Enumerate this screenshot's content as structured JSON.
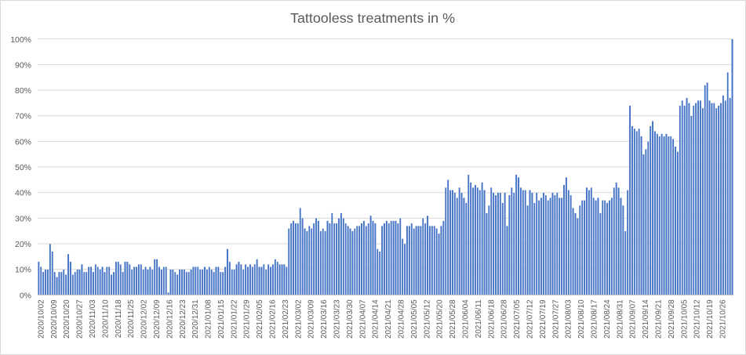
{
  "chart_data": {
    "type": "bar",
    "title": "Tattooless treatments  in %",
    "xlabel": "",
    "ylabel": "",
    "ylim": [
      0,
      100
    ],
    "yticks": [
      "0%",
      "10%",
      "20%",
      "30%",
      "40%",
      "50%",
      "60%",
      "70%",
      "80%",
      "90%",
      "100%"
    ],
    "grid": true,
    "legend": "none",
    "bar_color": "#4472c4",
    "x_tick_labels": [
      "2020/10/02",
      "2020/10/09",
      "2020/10/20",
      "2020/10/27",
      "2020/11/03",
      "2020/11/10",
      "2020/11/18",
      "2020/11/25",
      "2020/12/02",
      "2020/12/09",
      "2020/12/16",
      "2020/12/23",
      "2020/12/31",
      "2021/01/08",
      "2021/01/15",
      "2021/01/22",
      "2021/01/29",
      "2021/02/05",
      "2021/02/16",
      "2021/02/23",
      "2021/03/02",
      "2021/03/09",
      "2021/03/16",
      "2021/03/23",
      "2021/03/30",
      "2021/04/07",
      "2021/04/14",
      "2021/04/21",
      "2021/04/28",
      "2021/05/05",
      "2021/05/12",
      "2021/05/20",
      "2021/05/28",
      "2021/06/04",
      "2021/06/11",
      "2021/06/18",
      "2021/06/28",
      "2021/07/05",
      "2021/07/12",
      "2021/07/19",
      "2021/07/27",
      "2021/08/03",
      "2021/08/10",
      "2021/08/17",
      "2021/08/24",
      "2021/08/31",
      "2021/09/07",
      "2021/09/14",
      "2021/09/21",
      "2021/09/28",
      "2021/10/05",
      "2021/10/12",
      "2021/10/19",
      "2021/10/26"
    ],
    "values": [
      13,
      11,
      9,
      10,
      10,
      20,
      17,
      9,
      7,
      9,
      9,
      10,
      8,
      16,
      13,
      8,
      9,
      10,
      10,
      12,
      9,
      9,
      11,
      11,
      9,
      12,
      11,
      10,
      11,
      9,
      11,
      11,
      8,
      9,
      13,
      13,
      12,
      9,
      13,
      13,
      12,
      10,
      11,
      11,
      12,
      12,
      10,
      11,
      10,
      11,
      10,
      14,
      14,
      11,
      10,
      11,
      11,
      1,
      10,
      10,
      9,
      8,
      10,
      10,
      10,
      9,
      9,
      10,
      11,
      11,
      11,
      10,
      10,
      11,
      10,
      11,
      10,
      9,
      11,
      11,
      9,
      9,
      11,
      18,
      13,
      10,
      10,
      12,
      13,
      12,
      10,
      12,
      11,
      12,
      11,
      12,
      14,
      11,
      11,
      12,
      10,
      12,
      11,
      12,
      14,
      13,
      12,
      12,
      12,
      11,
      26,
      28,
      29,
      28,
      28,
      34,
      30,
      26,
      25,
      27,
      26,
      28,
      30,
      29,
      25,
      26,
      25,
      29,
      28,
      32,
      28,
      28,
      30,
      32,
      30,
      28,
      27,
      26,
      25,
      26,
      27,
      27,
      28,
      29,
      27,
      28,
      31,
      29,
      28,
      18,
      17,
      27,
      28,
      29,
      28,
      29,
      29,
      29,
      28,
      30,
      22,
      20,
      27,
      27,
      28,
      26,
      27,
      27,
      27,
      30,
      28,
      31,
      27,
      27,
      27,
      26,
      24,
      27,
      29,
      42,
      45,
      41,
      41,
      40,
      38,
      42,
      40,
      38,
      36,
      47,
      44,
      42,
      43,
      42,
      41,
      44,
      41,
      32,
      35,
      42,
      40,
      39,
      40,
      40,
      36,
      40,
      27,
      39,
      42,
      40,
      47,
      46,
      42,
      41,
      41,
      35,
      41,
      40,
      36,
      40,
      37,
      38,
      40,
      39,
      37,
      38,
      40,
      39,
      40,
      38,
      38,
      43,
      46,
      41,
      39,
      34,
      32,
      30,
      35,
      37,
      37,
      42,
      41,
      42,
      38,
      37,
      38,
      32,
      37,
      37,
      36,
      37,
      38,
      42,
      44,
      42,
      38,
      35,
      25,
      41,
      74,
      66,
      65,
      64,
      65,
      62,
      55,
      57,
      60,
      66,
      68,
      64,
      63,
      62,
      63,
      62,
      63,
      62,
      62,
      61,
      58,
      56,
      74,
      76,
      74,
      77,
      75,
      70,
      74,
      75,
      76,
      76,
      73,
      82,
      83,
      76,
      75,
      75,
      73,
      74,
      75,
      78,
      76,
      87,
      77,
      100
    ]
  }
}
